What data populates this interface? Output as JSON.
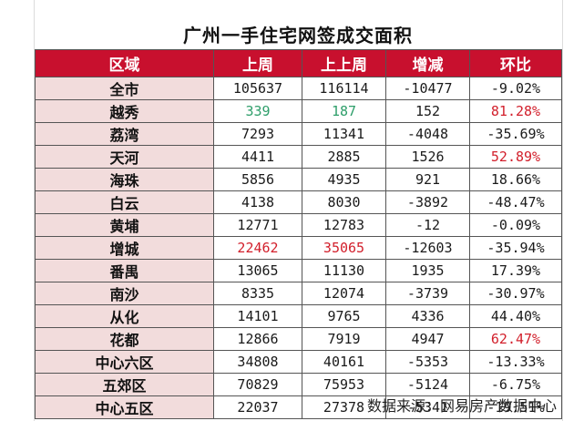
{
  "title": "广州一手住宅网签成交面积",
  "headers": [
    "区域",
    "上周",
    "上上周",
    "增减",
    "环比"
  ],
  "rows": [
    {
      "region": "全市",
      "last_week": "105637",
      "week_before": "116114",
      "change": "-10477",
      "ratio": "-9.02%"
    },
    {
      "region": "越秀",
      "last_week": "339",
      "week_before": "187",
      "change": "152",
      "ratio": "81.28%",
      "highlight": {
        "last_week": "green",
        "week_before": "green",
        "ratio": "red"
      }
    },
    {
      "region": "荔湾",
      "last_week": "7293",
      "week_before": "11341",
      "change": "-4048",
      "ratio": "-35.69%"
    },
    {
      "region": "天河",
      "last_week": "4411",
      "week_before": "2885",
      "change": "1526",
      "ratio": "52.89%",
      "highlight": {
        "ratio": "red"
      }
    },
    {
      "region": "海珠",
      "last_week": "5856",
      "week_before": "4935",
      "change": "921",
      "ratio": "18.66%"
    },
    {
      "region": "白云",
      "last_week": "4138",
      "week_before": "8030",
      "change": "-3892",
      "ratio": "-48.47%"
    },
    {
      "region": "黄埔",
      "last_week": "12771",
      "week_before": "12783",
      "change": "-12",
      "ratio": "-0.09%"
    },
    {
      "region": "增城",
      "last_week": "22462",
      "week_before": "35065",
      "change": "-12603",
      "ratio": "-35.94%",
      "highlight": {
        "last_week": "red",
        "week_before": "red"
      }
    },
    {
      "region": "番禺",
      "last_week": "13065",
      "week_before": "11130",
      "change": "1935",
      "ratio": "17.39%"
    },
    {
      "region": "南沙",
      "last_week": "8335",
      "week_before": "12074",
      "change": "-3739",
      "ratio": "-30.97%"
    },
    {
      "region": "从化",
      "last_week": "14101",
      "week_before": "9765",
      "change": "4336",
      "ratio": "44.40%"
    },
    {
      "region": "花都",
      "last_week": "12866",
      "week_before": "7919",
      "change": "4947",
      "ratio": "62.47%",
      "highlight": {
        "ratio": "red"
      }
    },
    {
      "region": "中心六区",
      "last_week": "34808",
      "week_before": "40161",
      "change": "-5353",
      "ratio": "-13.33%"
    },
    {
      "region": "五郊区",
      "last_week": "70829",
      "week_before": "75953",
      "change": "-5124",
      "ratio": "-6.75%"
    },
    {
      "region": "中心五区",
      "last_week": "22037",
      "week_before": "27378",
      "change": "-5341",
      "ratio": "-19.51%"
    }
  ],
  "source": "数据来源：网易房产数据中心",
  "colors": {
    "header_bg": "#c8102e",
    "region_bg": "#f2dcdc",
    "highlight_green": "#2e9e6a",
    "highlight_red": "#d21f2b"
  }
}
